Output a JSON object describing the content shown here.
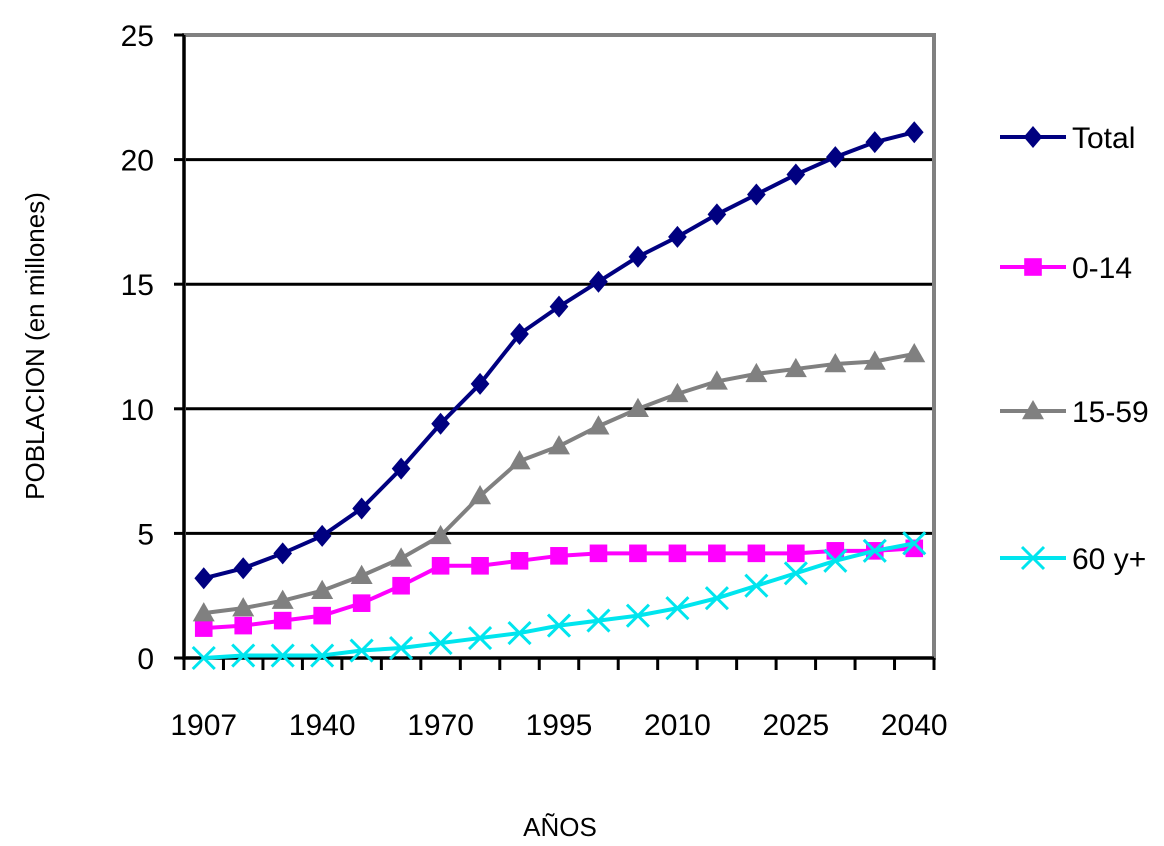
{
  "chart_data": {
    "type": "line",
    "xlabel": "AÑOS",
    "ylabel": "POBLACION  (en  millones)",
    "x": [
      1907,
      1920,
      1930,
      1940,
      1950,
      1960,
      1970,
      1980,
      1990,
      1995,
      2000,
      2005,
      2010,
      2015,
      2020,
      2025,
      2030,
      2035,
      2040
    ],
    "x_tick_labels": [
      "1907",
      "1940",
      "1970",
      "1995",
      "2010",
      "2025",
      "2040"
    ],
    "ylim": [
      0,
      25
    ],
    "y_ticks": [
      0,
      5,
      10,
      15,
      20,
      25
    ],
    "grid": "horizontal",
    "legend_position": "right",
    "series": [
      {
        "name": "Total",
        "color": "#000080",
        "marker": "diamond",
        "values": [
          3.2,
          3.6,
          4.2,
          4.9,
          6.0,
          7.6,
          9.4,
          11.0,
          13.0,
          14.1,
          15.1,
          16.1,
          16.9,
          17.8,
          18.6,
          19.4,
          20.1,
          20.7,
          21.1
        ]
      },
      {
        "name": "0-14",
        "color": "#ff00ff",
        "marker": "square",
        "values": [
          1.2,
          1.3,
          1.5,
          1.7,
          2.2,
          2.9,
          3.7,
          3.7,
          3.9,
          4.1,
          4.2,
          4.2,
          4.2,
          4.2,
          4.2,
          4.2,
          4.3,
          4.3,
          4.4
        ]
      },
      {
        "name": "15-59",
        "color": "#808080",
        "marker": "triangle",
        "values": [
          1.8,
          2.0,
          2.3,
          2.7,
          3.3,
          4.0,
          4.9,
          6.5,
          7.9,
          8.5,
          9.3,
          10.0,
          10.6,
          11.1,
          11.4,
          11.6,
          11.8,
          11.9,
          12.2
        ]
      },
      {
        "name": "60 y+",
        "color": "#00e5ee",
        "marker": "x",
        "values": [
          0.0,
          0.1,
          0.1,
          0.1,
          0.3,
          0.4,
          0.6,
          0.8,
          1.0,
          1.3,
          1.5,
          1.7,
          2.0,
          2.4,
          2.9,
          3.4,
          3.9,
          4.3,
          4.6
        ]
      }
    ]
  }
}
